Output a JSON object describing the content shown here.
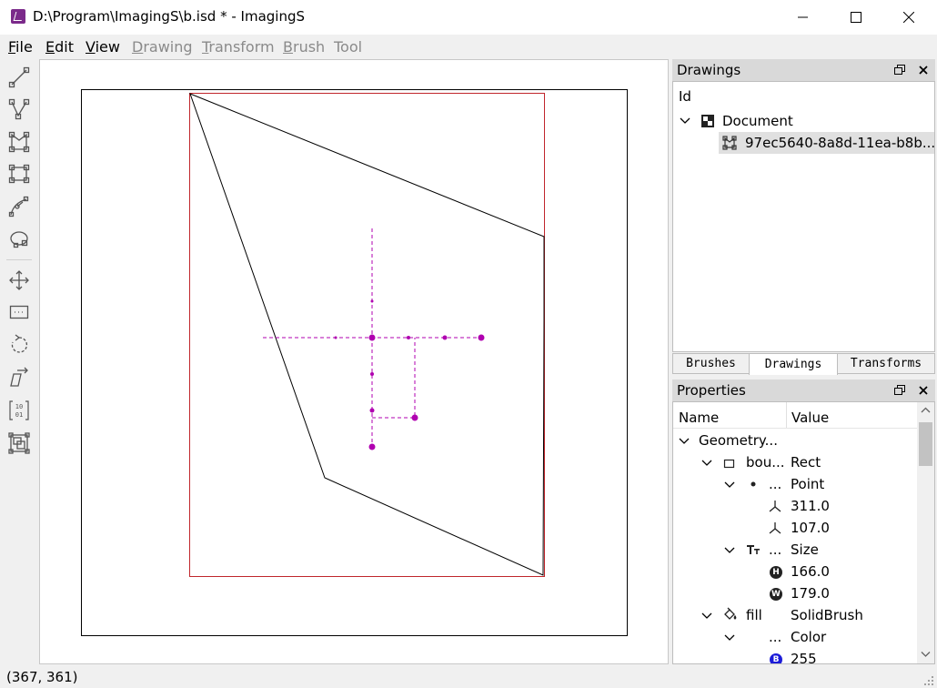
{
  "window": {
    "title": "D:\\Program\\ImagingS\\b.isd * - ImagingS"
  },
  "menu": [
    {
      "label": "File",
      "mnemonic": "F",
      "rest": "ile",
      "enabled": true
    },
    {
      "label": "Edit",
      "mnemonic": "E",
      "rest": "dit",
      "enabled": true
    },
    {
      "label": "View",
      "mnemonic": "V",
      "rest": "iew",
      "enabled": true
    },
    {
      "label": "Drawing",
      "mnemonic": "D",
      "rest": "rawing",
      "enabled": false
    },
    {
      "label": "Transform",
      "mnemonic": "T",
      "rest": "ransform",
      "enabled": false
    },
    {
      "label": "Brush",
      "mnemonic": "B",
      "rest": "rush",
      "enabled": false
    },
    {
      "label": "Tool",
      "mnemonic": "",
      "rest": "Tool",
      "enabled": false
    }
  ],
  "toolbar": [
    "line-tool-icon",
    "polyline-tool-icon",
    "polygon-tool-icon",
    "rectangle-tool-icon",
    "curve-tool-icon",
    "ellipse-tool-icon",
    "move-tool-icon",
    "clip-tool-icon",
    "rotate-tool-icon",
    "skew-tool-icon",
    "matrix-tool-icon",
    "group-tool-icon"
  ],
  "drawings_panel": {
    "title": "Drawings",
    "column": "Id",
    "root": "Document",
    "child": "97ec5640-8a8d-11ea-b8b..."
  },
  "tabs": {
    "brushes": "Brushes",
    "drawings": "Drawings",
    "transforms": "Transforms",
    "active": "Drawings"
  },
  "properties_panel": {
    "title": "Properties",
    "col_name": "Name",
    "col_value": "Value",
    "rows": {
      "geometry": "Geometry...",
      "bounds_name": "bou...",
      "bounds_value": "Rect",
      "point_name": "...",
      "point_value": "Point",
      "x": "311.0",
      "y": "107.0",
      "size_name": "...",
      "size_value": "Size",
      "height": "166.0",
      "width": "179.0",
      "fill_name": "fill",
      "fill_value": "SolidBrush",
      "color_name": "...",
      "color_value": "Color",
      "blue": "255"
    }
  },
  "status": {
    "coords": "(367, 361)"
  },
  "colors": {
    "bounding_box": "#c0262c",
    "selection_handles": "#b000b0",
    "app_icon": "#7b2a8a"
  }
}
